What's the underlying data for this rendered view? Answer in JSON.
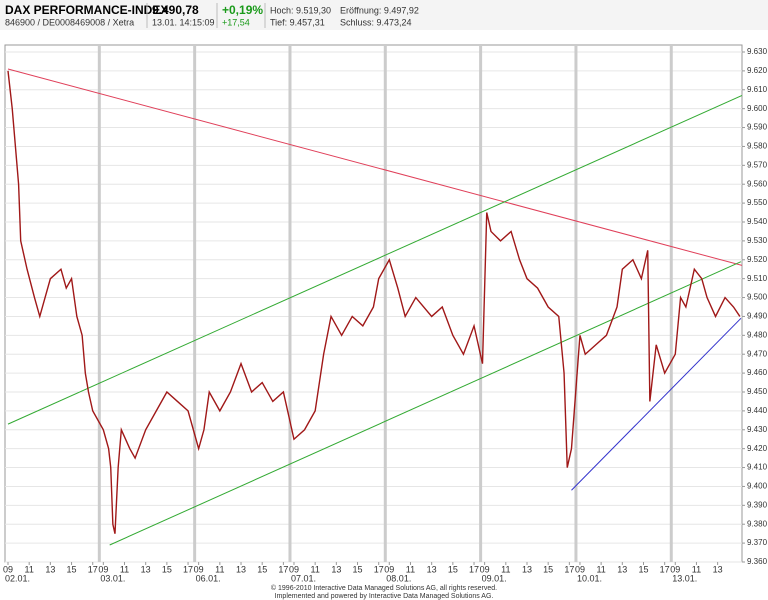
{
  "header": {
    "title": "DAX PERFORMANCE-INDEX",
    "price": "9.490,78",
    "change_pct": "+0,19%",
    "change_abs": "+17,54",
    "identifier": "846900 / DE0008469008 / Xetra",
    "timestamp": "13.01. 14:15:09",
    "high": "Hoch: 9.519,30",
    "open": "Eröffnung: 9.497,92",
    "low": "Tief: 9.457,31",
    "close": "Schluss: 9.473,24"
  },
  "footer": {
    "copyright": "© 1996-2010 Interactive Data Managed Solutions AG, all rights reserved.",
    "powered": "Implemented and powered by Interactive Data Managed Solutions AG."
  },
  "chart_data": {
    "type": "line",
    "color": "#a01818",
    "grid": true,
    "xlim": [
      0,
      69.3
    ],
    "ylim": [
      9360,
      9630
    ],
    "yticks": [
      {
        "value": 9360,
        "label": "9.360"
      },
      {
        "value": 9370,
        "label": "9.370"
      },
      {
        "value": 9380,
        "label": "9.380"
      },
      {
        "value": 9390,
        "label": "9.390"
      },
      {
        "value": 9400,
        "label": "9.400"
      },
      {
        "value": 9410,
        "label": "9.410"
      },
      {
        "value": 9420,
        "label": "9.420"
      },
      {
        "value": 9430,
        "label": "9.430"
      },
      {
        "value": 9440,
        "label": "9.440"
      },
      {
        "value": 9450,
        "label": "9.450"
      },
      {
        "value": 9460,
        "label": "9.460"
      },
      {
        "value": 9470,
        "label": "9.470"
      },
      {
        "value": 9480,
        "label": "9.480"
      },
      {
        "value": 9490,
        "label": "9.490"
      },
      {
        "value": 9500,
        "label": "9.500"
      },
      {
        "value": 9510,
        "label": "9.510"
      },
      {
        "value": 9520,
        "label": "9.520"
      },
      {
        "value": 9530,
        "label": "9.530"
      },
      {
        "value": 9540,
        "label": "9.540"
      },
      {
        "value": 9550,
        "label": "9.550"
      },
      {
        "value": 9560,
        "label": "9.560"
      },
      {
        "value": 9570,
        "label": "9.570"
      },
      {
        "value": 9580,
        "label": "9.580"
      },
      {
        "value": 9590,
        "label": "9.590"
      },
      {
        "value": 9600,
        "label": "9.600"
      },
      {
        "value": 9610,
        "label": "9.610"
      },
      {
        "value": 9620,
        "label": "9.620"
      },
      {
        "value": 9630,
        "label": "9.630"
      }
    ],
    "xticks": [
      {
        "value": 0,
        "label": "09"
      },
      {
        "value": 2,
        "label": "11"
      },
      {
        "value": 4,
        "label": "13"
      },
      {
        "value": 6,
        "label": "15"
      },
      {
        "value": 8,
        "label": "17"
      },
      {
        "value": 9,
        "label": "09"
      },
      {
        "value": 11,
        "label": "11"
      },
      {
        "value": 13,
        "label": "13"
      },
      {
        "value": 15,
        "label": "15"
      },
      {
        "value": 17,
        "label": "17"
      },
      {
        "value": 18,
        "label": "09"
      },
      {
        "value": 20,
        "label": "11"
      },
      {
        "value": 22,
        "label": "13"
      },
      {
        "value": 24,
        "label": "15"
      },
      {
        "value": 26,
        "label": "17"
      },
      {
        "value": 27,
        "label": "09"
      },
      {
        "value": 29,
        "label": "11"
      },
      {
        "value": 31,
        "label": "13"
      },
      {
        "value": 33,
        "label": "15"
      },
      {
        "value": 35,
        "label": "17"
      },
      {
        "value": 36,
        "label": "09"
      },
      {
        "value": 38,
        "label": "11"
      },
      {
        "value": 40,
        "label": "13"
      },
      {
        "value": 42,
        "label": "15"
      },
      {
        "value": 44,
        "label": "17"
      },
      {
        "value": 45,
        "label": "09"
      },
      {
        "value": 47,
        "label": "11"
      },
      {
        "value": 49,
        "label": "13"
      },
      {
        "value": 51,
        "label": "15"
      },
      {
        "value": 53,
        "label": "17"
      },
      {
        "value": 54,
        "label": "09"
      },
      {
        "value": 56,
        "label": "11"
      },
      {
        "value": 58,
        "label": "13"
      },
      {
        "value": 60,
        "label": "15"
      },
      {
        "value": 62,
        "label": "17"
      },
      {
        "value": 63,
        "label": "09"
      },
      {
        "value": 65,
        "label": "11"
      },
      {
        "value": 67,
        "label": "13"
      }
    ],
    "day_ticks": [
      {
        "value": 0,
        "label": "02.01."
      },
      {
        "value": 9,
        "label": "03.01."
      },
      {
        "value": 18,
        "label": "06.01."
      },
      {
        "value": 27,
        "label": "07.01."
      },
      {
        "value": 36,
        "label": "08.01."
      },
      {
        "value": 45,
        "label": "09.01."
      },
      {
        "value": 54,
        "label": "10.01."
      },
      {
        "value": 63,
        "label": "13.01."
      }
    ],
    "x": [
      0,
      0.4,
      1,
      1.2,
      1.8,
      2.5,
      3,
      4,
      5,
      5.5,
      6,
      6.5,
      7,
      7.3,
      7.6,
      8,
      9,
      9.5,
      9.7,
      9.9,
      10.1,
      10.4,
      10.7,
      11.5,
      12,
      13,
      14,
      15,
      16,
      17,
      18,
      18.5,
      19,
      20,
      21,
      22,
      23,
      24,
      25,
      26,
      27,
      28,
      29,
      29.8,
      30.5,
      31.5,
      32.5,
      33.5,
      34.5,
      35,
      36,
      36.8,
      37.5,
      38.5,
      40,
      41,
      42,
      43,
      44,
      44.8,
      45.2,
      45.6,
      46.5,
      47.5,
      48.3,
      49,
      50,
      51,
      52,
      52.5,
      52.8,
      53.2,
      54,
      54.5,
      55.5,
      56.5,
      57.5,
      58,
      59,
      59.8,
      60.4,
      60.6,
      61.2,
      62,
      63,
      63.5,
      64,
      64.8,
      65.5,
      66,
      66.8,
      67.7,
      68.5,
      69.1
    ],
    "values": [
      9620,
      9600,
      9560,
      9530,
      9515,
      9500,
      9490,
      9510,
      9515,
      9505,
      9510,
      9490,
      9480,
      9460,
      9450,
      9440,
      9430,
      9420,
      9410,
      9380,
      9375,
      9410,
      9430,
      9420,
      9415,
      9430,
      9440,
      9450,
      9445,
      9440,
      9420,
      9430,
      9450,
      9440,
      9450,
      9465,
      9450,
      9455,
      9445,
      9450,
      9425,
      9430,
      9440,
      9470,
      9490,
      9480,
      9490,
      9485,
      9495,
      9510,
      9520,
      9505,
      9490,
      9500,
      9490,
      9495,
      9480,
      9470,
      9485,
      9465,
      9545,
      9535,
      9530,
      9535,
      9520,
      9510,
      9505,
      9495,
      9490,
      9460,
      9410,
      9420,
      9480,
      9470,
      9475,
      9480,
      9495,
      9515,
      9520,
      9510,
      9525,
      9445,
      9475,
      9460,
      9470,
      9500,
      9495,
      9515,
      9510,
      9500,
      9490,
      9500,
      9495,
      9490
    ],
    "trendlines": [
      {
        "color": "#e0405a",
        "x": [
          0,
          69.3
        ],
        "values": [
          9621,
          9517
        ]
      },
      {
        "color": "#33aa33",
        "x": [
          0,
          69.3
        ],
        "values": [
          9433,
          9607
        ]
      },
      {
        "color": "#33aa33",
        "x": [
          9.6,
          69.2
        ],
        "values": [
          9369,
          9519
        ]
      },
      {
        "color": "#3333cc",
        "x": [
          53.2,
          69.2
        ],
        "values": [
          9398,
          9489
        ]
      }
    ]
  }
}
